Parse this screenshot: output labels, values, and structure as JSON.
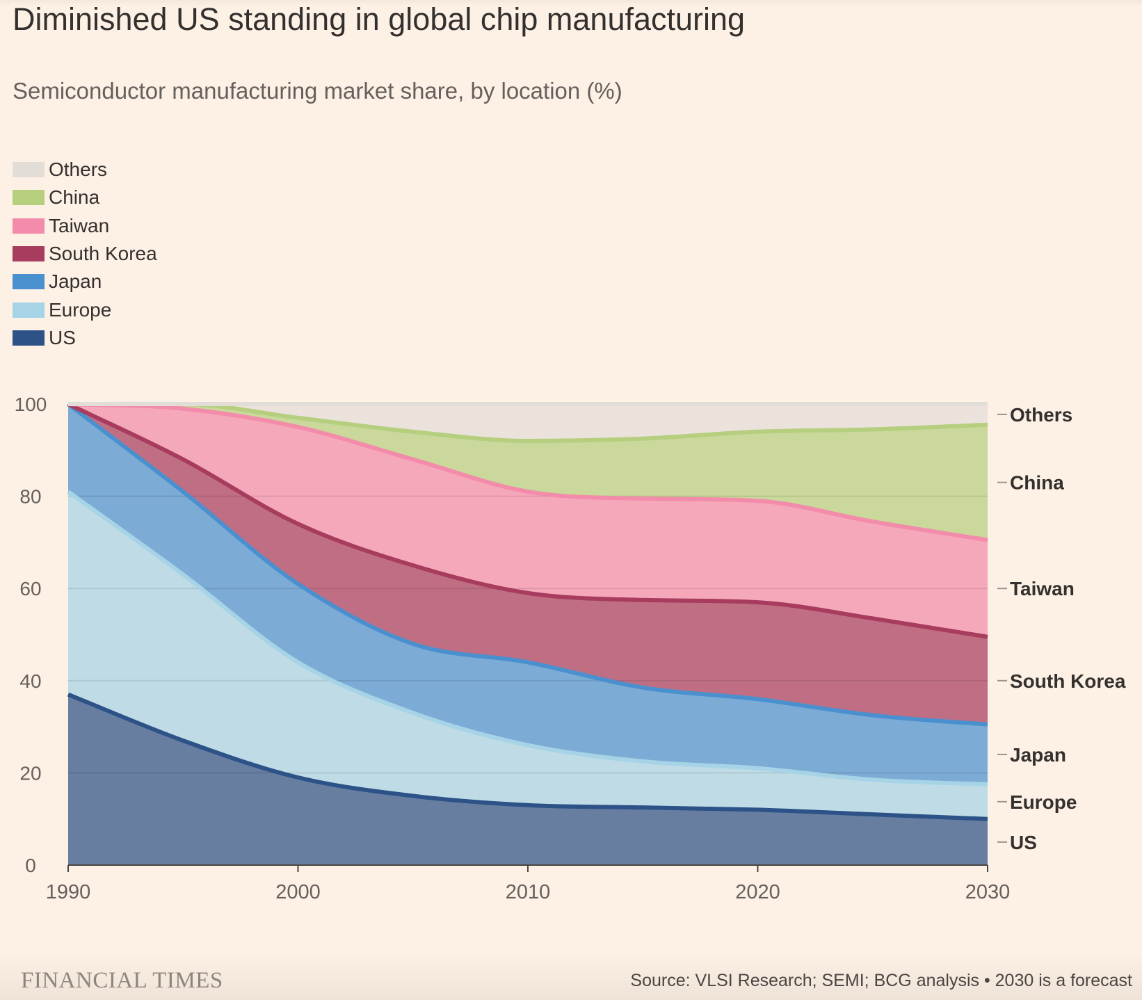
{
  "header": {
    "title": "Diminished US standing in global chip manufacturing",
    "subtitle": "Semiconductor manufacturing market share, by location (%)"
  },
  "legend": [
    {
      "label": "Others",
      "color": "#e3ddd8"
    },
    {
      "label": "China",
      "color": "#b5cf7e"
    },
    {
      "label": "Taiwan",
      "color": "#f28caa"
    },
    {
      "label": "South Korea",
      "color": "#a73c5e"
    },
    {
      "label": "Japan",
      "color": "#4a90cf"
    },
    {
      "label": "Europe",
      "color": "#a6d4e6"
    },
    {
      "label": "US",
      "color": "#2c5287"
    }
  ],
  "chart_data": {
    "type": "area",
    "stacked": true,
    "x": [
      1990,
      1995,
      2000,
      2005,
      2010,
      2015,
      2020,
      2025,
      2030
    ],
    "xticks": [
      "1990",
      "2000",
      "2010",
      "2020",
      "2030"
    ],
    "yticks": [
      "0",
      "20",
      "40",
      "60",
      "80",
      "100"
    ],
    "ylim": [
      0,
      100
    ],
    "xlim": [
      1990,
      2030
    ],
    "grid": true,
    "series": [
      {
        "name": "US",
        "color": "#2c5287",
        "values": [
          37,
          27,
          19,
          15,
          13,
          12.5,
          12,
          11,
          10
        ]
      },
      {
        "name": "Europe",
        "color": "#a6d4e6",
        "values": [
          44,
          36,
          25,
          18,
          13,
          10,
          9,
          7.5,
          7.5
        ]
      },
      {
        "name": "Japan",
        "color": "#4a90cf",
        "values": [
          19,
          18,
          17,
          15,
          18,
          16,
          15,
          14,
          13
        ]
      },
      {
        "name": "South Korea",
        "color": "#a73c5e",
        "values": [
          0,
          7,
          13,
          17,
          15,
          19,
          21,
          21,
          19
        ]
      },
      {
        "name": "Taiwan",
        "color": "#f28caa",
        "values": [
          0,
          11,
          21,
          23,
          22,
          22,
          22,
          21,
          21
        ]
      },
      {
        "name": "China",
        "color": "#b5cf7e",
        "values": [
          0,
          1,
          2,
          6,
          11,
          13,
          15,
          20,
          25
        ]
      },
      {
        "name": "Others",
        "color": "#e3ddd8",
        "values": [
          0,
          0,
          3,
          6,
          8,
          7.5,
          6,
          5.5,
          4.5
        ]
      }
    ],
    "end_labels": [
      "Others",
      "China",
      "Taiwan",
      "South Korea",
      "Japan",
      "Europe",
      "US"
    ]
  },
  "footer": {
    "brand": "FINANCIAL TIMES",
    "source": "Source: VLSI Research; SEMI; BCG analysis • 2030 is a forecast"
  }
}
